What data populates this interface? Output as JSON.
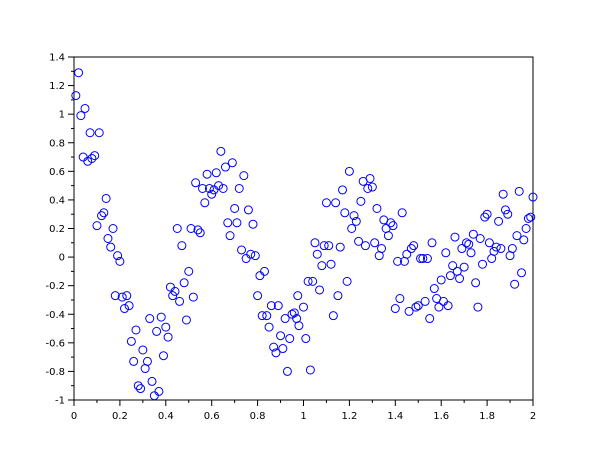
{
  "chart_data": {
    "type": "scatter",
    "title": "",
    "xlabel": "",
    "ylabel": "",
    "xlim": [
      0,
      2
    ],
    "ylim": [
      -1,
      1.4
    ],
    "xticks": [
      "0",
      "0.2",
      "0.4",
      "0.6",
      "0.8",
      "1",
      "1.2",
      "1.4",
      "1.6",
      "1.8",
      "2"
    ],
    "yticks": [
      "-1",
      "-0.8",
      "-0.6",
      "-0.4",
      "-0.2",
      "0",
      "0.2",
      "0.4",
      "0.6",
      "0.8",
      "1",
      "1.2",
      "1.4"
    ],
    "grid": false,
    "marker": "open-circle",
    "color": "#0000ff",
    "points": [
      [
        0.008,
        1.13
      ],
      [
        0.02,
        1.29
      ],
      [
        0.03,
        0.99
      ],
      [
        0.048,
        1.04
      ],
      [
        0.04,
        0.7
      ],
      [
        0.06,
        0.67
      ],
      [
        0.07,
        0.87
      ],
      [
        0.078,
        0.69
      ],
      [
        0.09,
        0.71
      ],
      [
        0.11,
        0.87
      ],
      [
        0.1,
        0.22
      ],
      [
        0.12,
        0.29
      ],
      [
        0.13,
        0.31
      ],
      [
        0.14,
        0.41
      ],
      [
        0.148,
        0.13
      ],
      [
        0.16,
        0.07
      ],
      [
        0.17,
        0.2
      ],
      [
        0.19,
        0.01
      ],
      [
        0.2,
        -0.03
      ],
      [
        0.18,
        -0.27
      ],
      [
        0.21,
        -0.28
      ],
      [
        0.23,
        -0.27
      ],
      [
        0.22,
        -0.36
      ],
      [
        0.24,
        -0.34
      ],
      [
        0.25,
        -0.59
      ],
      [
        0.26,
        -0.73
      ],
      [
        0.27,
        -0.51
      ],
      [
        0.28,
        -0.9
      ],
      [
        0.29,
        -0.92
      ],
      [
        0.3,
        -0.65
      ],
      [
        0.31,
        -0.78
      ],
      [
        0.32,
        -0.73
      ],
      [
        0.33,
        -0.43
      ],
      [
        0.34,
        -0.87
      ],
      [
        0.35,
        -0.97
      ],
      [
        0.36,
        -0.52
      ],
      [
        0.37,
        -0.94
      ],
      [
        0.38,
        -0.42
      ],
      [
        0.39,
        -0.69
      ],
      [
        0.4,
        -0.49
      ],
      [
        0.41,
        -0.56
      ],
      [
        0.42,
        -0.21
      ],
      [
        0.43,
        -0.27
      ],
      [
        0.44,
        -0.24
      ],
      [
        0.45,
        0.2
      ],
      [
        0.46,
        -0.31
      ],
      [
        0.47,
        0.08
      ],
      [
        0.48,
        -0.18
      ],
      [
        0.49,
        -0.44
      ],
      [
        0.5,
        -0.1
      ],
      [
        0.51,
        0.2
      ],
      [
        0.52,
        -0.28
      ],
      [
        0.53,
        0.52
      ],
      [
        0.54,
        0.19
      ],
      [
        0.55,
        0.17
      ],
      [
        0.56,
        0.48
      ],
      [
        0.57,
        0.38
      ],
      [
        0.58,
        0.58
      ],
      [
        0.59,
        0.48
      ],
      [
        0.6,
        0.44
      ],
      [
        0.61,
        0.47
      ],
      [
        0.62,
        0.59
      ],
      [
        0.63,
        0.5
      ],
      [
        0.64,
        0.74
      ],
      [
        0.65,
        0.48
      ],
      [
        0.66,
        0.63
      ],
      [
        0.67,
        0.24
      ],
      [
        0.68,
        0.15
      ],
      [
        0.69,
        0.66
      ],
      [
        0.7,
        0.34
      ],
      [
        0.71,
        0.24
      ],
      [
        0.72,
        0.48
      ],
      [
        0.73,
        0.05
      ],
      [
        0.74,
        0.57
      ],
      [
        0.75,
        -0.01
      ],
      [
        0.76,
        0.33
      ],
      [
        0.77,
        0.02
      ],
      [
        0.78,
        0.23
      ],
      [
        0.79,
        0.01
      ],
      [
        0.8,
        -0.27
      ],
      [
        0.81,
        -0.13
      ],
      [
        0.82,
        -0.41
      ],
      [
        0.83,
        -0.1
      ],
      [
        0.84,
        -0.41
      ],
      [
        0.85,
        -0.49
      ],
      [
        0.86,
        -0.34
      ],
      [
        0.87,
        -0.63
      ],
      [
        0.88,
        -0.67
      ],
      [
        0.89,
        -0.34
      ],
      [
        0.9,
        -0.55
      ],
      [
        0.91,
        -0.64
      ],
      [
        0.92,
        -0.43
      ],
      [
        0.93,
        -0.8
      ],
      [
        0.94,
        -0.57
      ],
      [
        0.95,
        -0.4
      ],
      [
        0.96,
        -0.39
      ],
      [
        0.97,
        -0.43
      ],
      [
        0.975,
        -0.27
      ],
      [
        0.98,
        -0.48
      ],
      [
        1.0,
        -0.35
      ],
      [
        1.01,
        -0.57
      ],
      [
        1.03,
        -0.79
      ],
      [
        1.02,
        -0.17
      ],
      [
        1.04,
        -0.17
      ],
      [
        1.05,
        0.1
      ],
      [
        1.06,
        0.02
      ],
      [
        1.07,
        -0.23
      ],
      [
        1.08,
        -0.06
      ],
      [
        1.09,
        0.08
      ],
      [
        1.1,
        0.38
      ],
      [
        1.11,
        0.08
      ],
      [
        1.12,
        -0.05
      ],
      [
        1.13,
        -0.41
      ],
      [
        1.14,
        0.38
      ],
      [
        1.15,
        -0.27
      ],
      [
        1.16,
        0.07
      ],
      [
        1.17,
        0.47
      ],
      [
        1.18,
        0.31
      ],
      [
        1.19,
        -0.17
      ],
      [
        1.2,
        0.6
      ],
      [
        1.21,
        0.2
      ],
      [
        1.22,
        0.29
      ],
      [
        1.23,
        0.25
      ],
      [
        1.24,
        0.11
      ],
      [
        1.25,
        0.39
      ],
      [
        1.26,
        0.53
      ],
      [
        1.27,
        0.08
      ],
      [
        1.28,
        0.48
      ],
      [
        1.29,
        0.55
      ],
      [
        1.3,
        0.49
      ],
      [
        1.31,
        0.1
      ],
      [
        1.32,
        0.34
      ],
      [
        1.33,
        0.01
      ],
      [
        1.34,
        0.06
      ],
      [
        1.35,
        0.26
      ],
      [
        1.36,
        0.2
      ],
      [
        1.37,
        0.15
      ],
      [
        1.38,
        0.24
      ],
      [
        1.39,
        0.22
      ],
      [
        1.4,
        -0.36
      ],
      [
        1.41,
        -0.03
      ],
      [
        1.42,
        -0.29
      ],
      [
        1.43,
        0.31
      ],
      [
        1.44,
        -0.03
      ],
      [
        1.45,
        0.02
      ],
      [
        1.46,
        -0.38
      ],
      [
        1.47,
        0.06
      ],
      [
        1.48,
        0.08
      ],
      [
        1.49,
        -0.35
      ],
      [
        1.5,
        -0.34
      ],
      [
        1.51,
        -0.01
      ],
      [
        1.52,
        -0.01
      ],
      [
        1.53,
        -0.31
      ],
      [
        1.54,
        -0.01
      ],
      [
        1.55,
        -0.43
      ],
      [
        1.56,
        0.1
      ],
      [
        1.57,
        -0.22
      ],
      [
        1.58,
        -0.29
      ],
      [
        1.59,
        -0.35
      ],
      [
        1.6,
        -0.16
      ],
      [
        1.61,
        -0.31
      ],
      [
        1.62,
        0.03
      ],
      [
        1.63,
        -0.34
      ],
      [
        1.64,
        -0.13
      ],
      [
        1.65,
        -0.06
      ],
      [
        1.66,
        0.14
      ],
      [
        1.67,
        -0.1
      ],
      [
        1.68,
        -0.15
      ],
      [
        1.69,
        0.06
      ],
      [
        1.7,
        -0.07
      ],
      [
        1.71,
        0.1
      ],
      [
        1.72,
        0.09
      ],
      [
        1.73,
        0.03
      ],
      [
        1.74,
        0.16
      ],
      [
        1.75,
        -0.18
      ],
      [
        1.76,
        -0.35
      ],
      [
        1.77,
        0.13
      ],
      [
        1.78,
        -0.05
      ],
      [
        1.79,
        0.28
      ],
      [
        1.8,
        0.3
      ],
      [
        1.81,
        0.1
      ],
      [
        1.82,
        -0.01
      ],
      [
        1.83,
        0.04
      ],
      [
        1.84,
        0.07
      ],
      [
        1.85,
        0.25
      ],
      [
        1.86,
        0.06
      ],
      [
        1.87,
        0.44
      ],
      [
        1.88,
        0.33
      ],
      [
        1.89,
        0.3
      ],
      [
        1.9,
        0.01
      ],
      [
        1.91,
        0.06
      ],
      [
        1.92,
        -0.19
      ],
      [
        1.93,
        0.15
      ],
      [
        1.94,
        0.46
      ],
      [
        1.95,
        -0.11
      ],
      [
        1.96,
        0.12
      ],
      [
        1.97,
        0.2
      ],
      [
        1.98,
        0.27
      ],
      [
        1.99,
        0.28
      ],
      [
        2.0,
        0.42
      ]
    ]
  }
}
